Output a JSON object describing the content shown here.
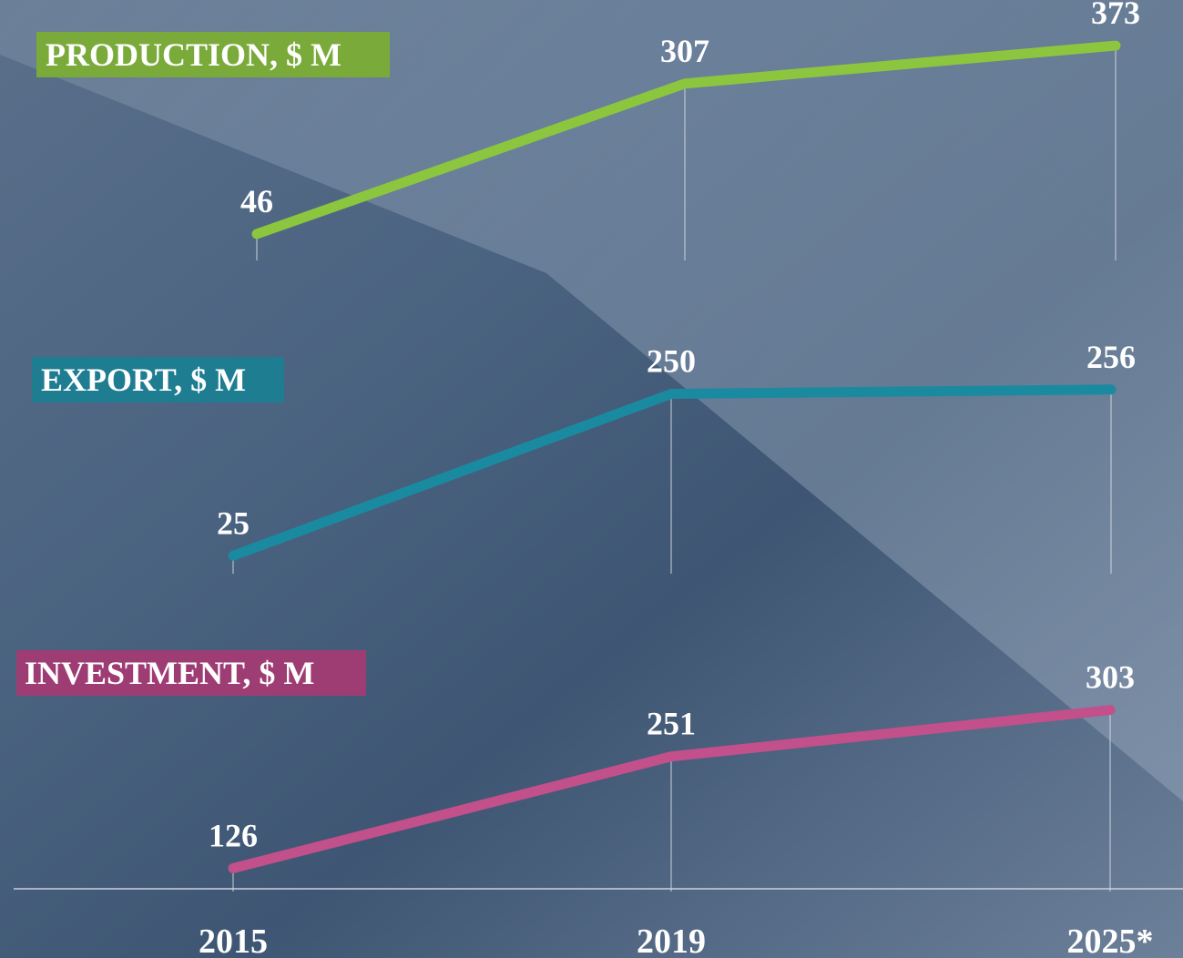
{
  "chart_data": [
    {
      "type": "line",
      "title": "PRODUCTION, $ M",
      "values": [
        46,
        307,
        373
      ],
      "color": "#8cc63f",
      "title_color": "#7aaa3a",
      "ylim": [
        0,
        400
      ]
    },
    {
      "type": "line",
      "title": "EXPORT, $ M",
      "values": [
        25,
        250,
        256
      ],
      "color": "#1a8aa0",
      "title_color": "#1f7d92",
      "ylim": [
        0,
        300
      ]
    },
    {
      "type": "line",
      "title": "INVESTMENT, $ M",
      "values": [
        126,
        251,
        303
      ],
      "color": "#c2508a",
      "title_color": "#9e3d73",
      "ylim": [
        100,
        320
      ],
      "categories": [
        "2015",
        "2019",
        "2025*"
      ]
    }
  ]
}
